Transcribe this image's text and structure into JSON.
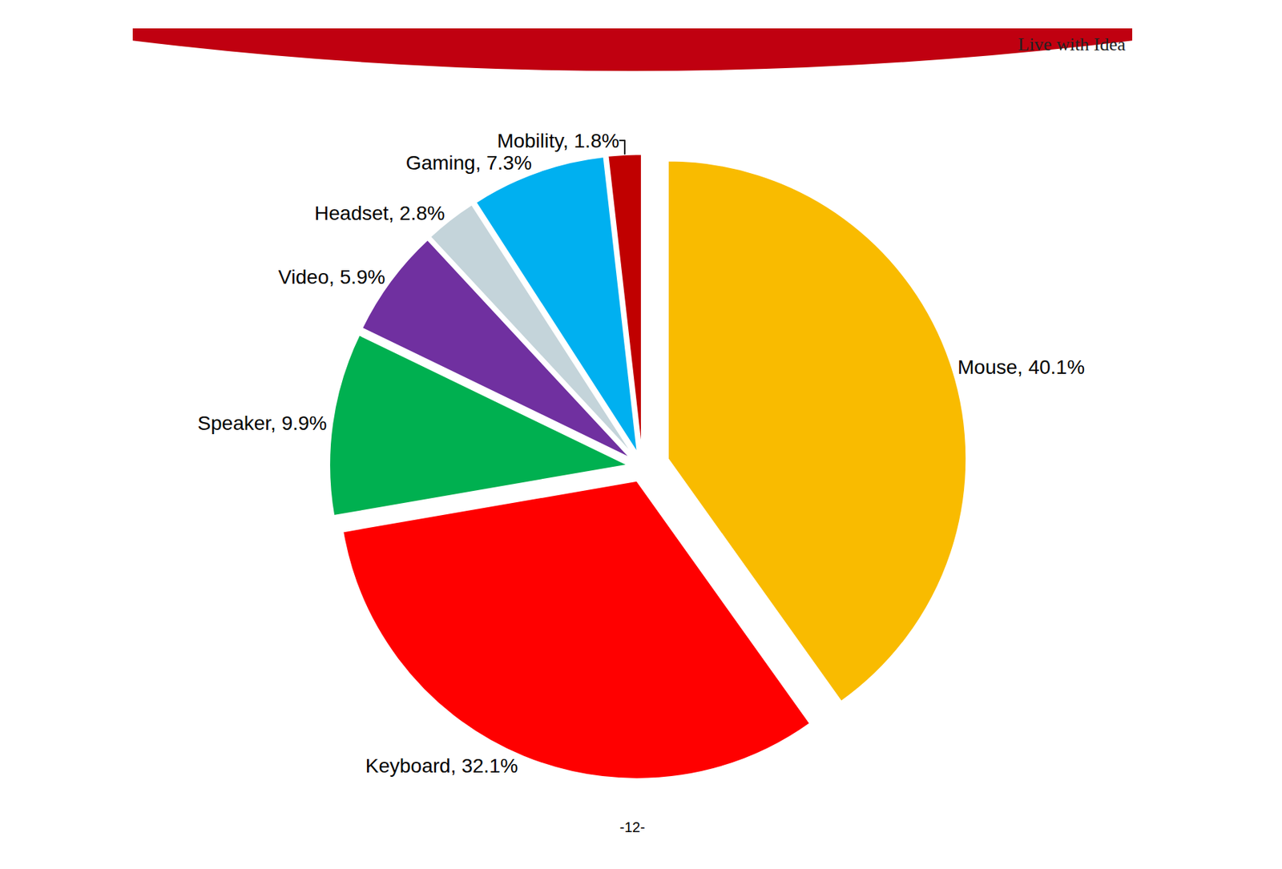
{
  "chart_data": {
    "type": "pie",
    "categories": [
      "Mouse",
      "Keyboard",
      "Speaker",
      "Video",
      "Headset",
      "Gaming",
      "Mobility"
    ],
    "values": [
      40.1,
      32.1,
      9.9,
      5.9,
      2.8,
      7.3,
      1.8
    ],
    "value_labels": [
      "Mouse, 40.1%",
      "Keyboard, 32.1%",
      "Speaker, 9.9%",
      "Video, 5.9%",
      "Headset, 2.8%",
      "Gaming, 7.3%",
      "Mobility, 1.8%"
    ],
    "colors": [
      "#f9bb00",
      "#ff0000",
      "#00b050",
      "#7030a0",
      "#c4d4da",
      "#00b0f0",
      "#c00000"
    ],
    "data_labels": true,
    "annotations": [
      "Live with Idea",
      "-12-"
    ]
  }
}
